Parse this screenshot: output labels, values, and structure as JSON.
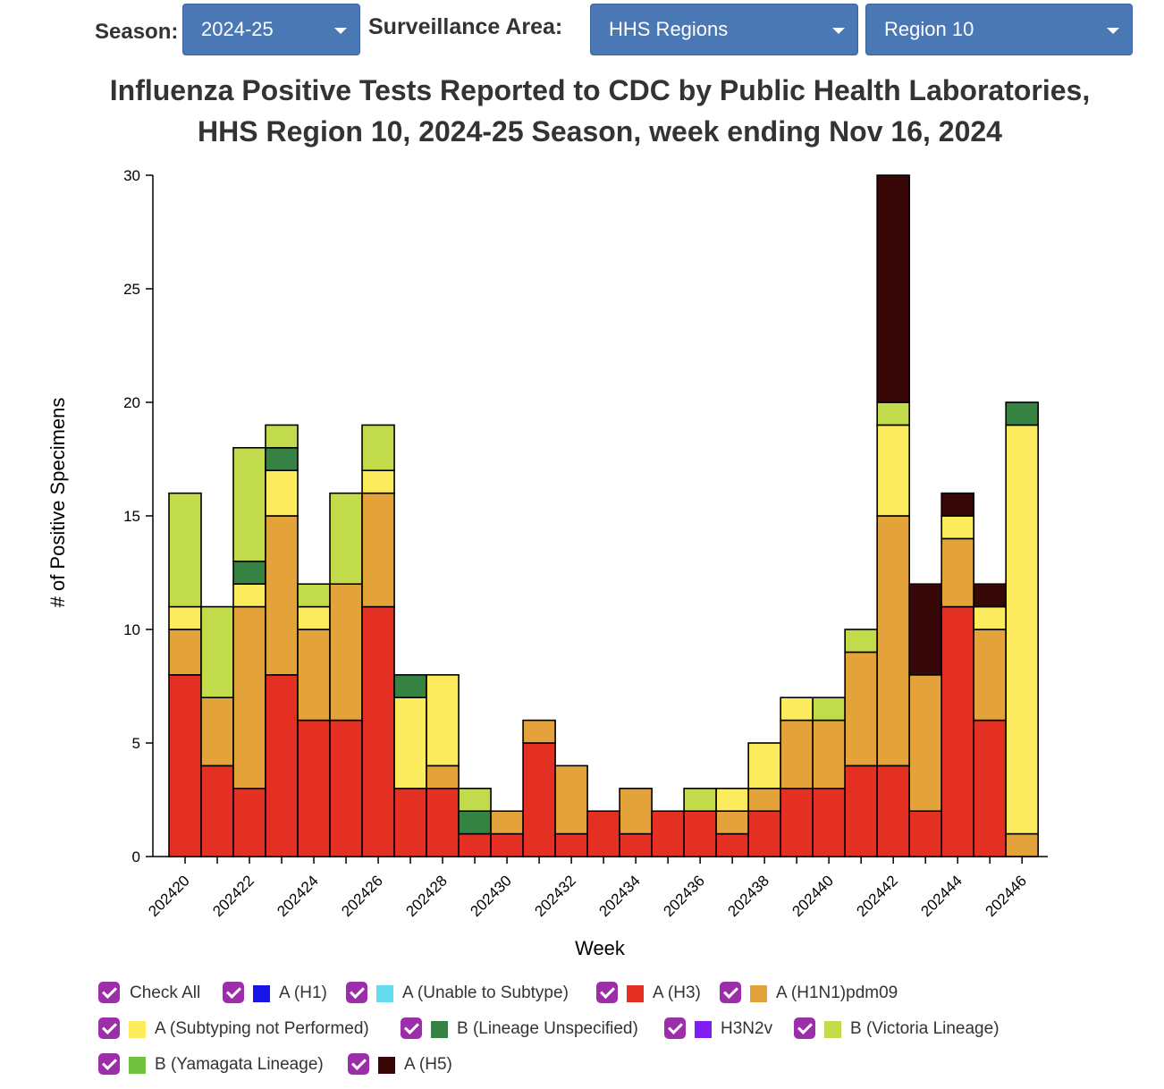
{
  "controls": {
    "season_label": "Season:",
    "season_value": "2024-25",
    "area_label": "Surveillance Area:",
    "area_value": "HHS Regions",
    "region_value": "Region 10"
  },
  "title": {
    "line1": "Influenza Positive Tests Reported to CDC by Public Health Laboratories,",
    "line2": "HHS Region 10, 2024-25 Season, week ending Nov 16, 2024"
  },
  "legend": {
    "check_all": "Check All",
    "items": [
      {
        "label": "A (H1)",
        "color": "#1515e8"
      },
      {
        "label": "A (Unable to Subtype)",
        "color": "#63dcf0"
      },
      {
        "label": "A (H3)",
        "color": "#e33023"
      },
      {
        "label": "A (H1N1)pdm09",
        "color": "#e4a23a"
      },
      {
        "label": "A (Subtyping not Performed)",
        "color": "#fcec5d"
      },
      {
        "label": "B (Lineage Unspecified)",
        "color": "#358242"
      },
      {
        "label": "H3N2v",
        "color": "#7e1ef5"
      },
      {
        "label": "B (Victoria Lineage)",
        "color": "#c1db4b"
      },
      {
        "label": "B (Yamagata Lineage)",
        "color": "#72c141"
      },
      {
        "label": "A (H5)",
        "color": "#380707"
      }
    ]
  },
  "chart_data": {
    "type": "bar",
    "stacked": true,
    "xlabel": "Week",
    "ylabel": "# of Positive Specimens",
    "ylim": [
      0,
      30
    ],
    "yticks": [
      0,
      5,
      10,
      15,
      20,
      25,
      30
    ],
    "categories": [
      "202420",
      "202421",
      "202422",
      "202423",
      "202424",
      "202425",
      "202426",
      "202427",
      "202428",
      "202429",
      "202430",
      "202431",
      "202432",
      "202433",
      "202434",
      "202435",
      "202436",
      "202437",
      "202438",
      "202439",
      "202440",
      "202441",
      "202442",
      "202443",
      "202444",
      "202445",
      "202446"
    ],
    "tick_labels": [
      "202420",
      "202422",
      "202424",
      "202426",
      "202428",
      "202430",
      "202432",
      "202434",
      "202436",
      "202438",
      "202440",
      "202442",
      "202444",
      "202446"
    ],
    "series": [
      {
        "name": "A (H3)",
        "color": "#e33023",
        "values": [
          8,
          4,
          3,
          8,
          6,
          6,
          11,
          3,
          3,
          1,
          1,
          5,
          1,
          2,
          1,
          2,
          2,
          1,
          2,
          3,
          3,
          4,
          4,
          2,
          11,
          6,
          0
        ]
      },
      {
        "name": "A (H1N1)pdm09",
        "color": "#e4a23a",
        "values": [
          2,
          3,
          8,
          7,
          4,
          6,
          5,
          0,
          1,
          0,
          1,
          1,
          3,
          0,
          2,
          0,
          0,
          1,
          1,
          3,
          3,
          5,
          11,
          6,
          3,
          4,
          1
        ]
      },
      {
        "name": "A (Subtyping not Performed)",
        "color": "#fcec5d",
        "values": [
          1,
          0,
          1,
          2,
          1,
          0,
          1,
          4,
          4,
          0,
          0,
          0,
          0,
          0,
          0,
          0,
          0,
          1,
          2,
          1,
          0,
          0,
          4,
          0,
          1,
          1,
          18
        ]
      },
      {
        "name": "B (Lineage Unspecified)",
        "color": "#358242",
        "values": [
          0,
          0,
          1,
          1,
          0,
          0,
          0,
          1,
          0,
          1,
          0,
          0,
          0,
          0,
          0,
          0,
          0,
          0,
          0,
          0,
          0,
          0,
          0,
          0,
          0,
          0,
          1
        ]
      },
      {
        "name": "B (Victoria Lineage)",
        "color": "#c1db4b",
        "values": [
          5,
          4,
          5,
          1,
          1,
          4,
          2,
          0,
          0,
          1,
          0,
          0,
          0,
          0,
          0,
          0,
          1,
          0,
          0,
          0,
          1,
          1,
          1,
          0,
          0,
          0,
          0
        ]
      },
      {
        "name": "A (H5)",
        "color": "#380707",
        "values": [
          0,
          0,
          0,
          0,
          0,
          0,
          0,
          0,
          0,
          0,
          0,
          0,
          0,
          0,
          0,
          0,
          0,
          0,
          0,
          0,
          0,
          0,
          10,
          4,
          1,
          1,
          0
        ]
      }
    ]
  }
}
